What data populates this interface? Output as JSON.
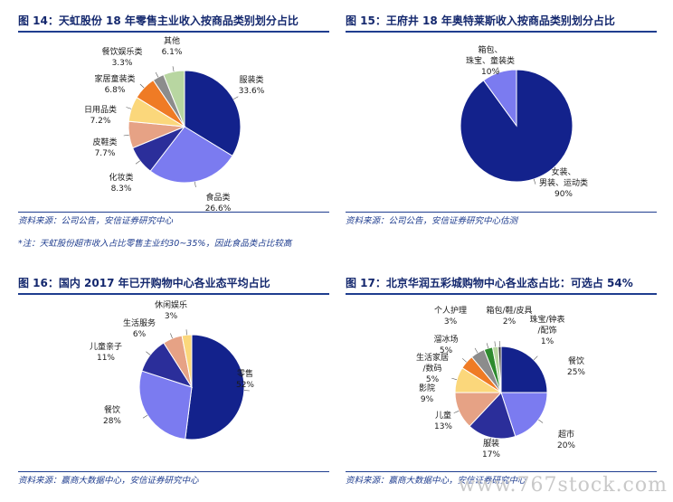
{
  "chart_data": [
    {
      "id": "p14",
      "type": "pie",
      "title": "图 14：天虹股份 18 年零售主业收入按商品类别划分占比",
      "slices": [
        {
          "label": "服装类",
          "pct": "33.6%",
          "value": 33.6,
          "color": "#13228c"
        },
        {
          "label": "食品类",
          "pct": "26.6%",
          "value": 26.6,
          "color": "#7b7bf0"
        },
        {
          "label": "化妆类",
          "pct": "8.3%",
          "value": 8.3,
          "color": "#2b2e9a"
        },
        {
          "label": "皮鞋类",
          "pct": "7.7%",
          "value": 7.7,
          "color": "#e6a285"
        },
        {
          "label": "日用品类",
          "pct": "7.2%",
          "value": 7.2,
          "color": "#fbd77b"
        },
        {
          "label": "家居童装类",
          "pct": "6.8%",
          "value": 6.8,
          "color": "#ef7b25"
        },
        {
          "label": "餐饮娱乐类",
          "pct": "3.3%",
          "value": 3.3,
          "color": "#8c8c8c"
        },
        {
          "label": "其他",
          "pct": "6.1%",
          "value": 6.1,
          "color": "#b8d6a1"
        }
      ],
      "source": "资料来源：公司公告，安信证券研究中心",
      "note": "*注：天虹股份超市收入占比零售主业约30~35%，因此食品类占比较高"
    },
    {
      "id": "p15",
      "type": "pie",
      "title": "图 15：王府井 18 年奥特莱斯收入按商品类别划分占比",
      "slices": [
        {
          "label": "女装、男装、运动类",
          "pct": "90%",
          "value": 90,
          "color": "#13228c"
        },
        {
          "label": "箱包、珠宝、童装类",
          "pct": "10%",
          "value": 10,
          "color": "#7b7bf0"
        }
      ],
      "source": "资料来源：公司公告，安信证券研究中心估测"
    },
    {
      "id": "p16",
      "type": "pie",
      "title": "图 16：国内 2017 年已开购物中心各业态平均占比",
      "slices": [
        {
          "label": "零售",
          "pct": "52%",
          "value": 52,
          "color": "#13228c"
        },
        {
          "label": "餐饮",
          "pct": "28%",
          "value": 28,
          "color": "#7b7bf0"
        },
        {
          "label": "儿童亲子",
          "pct": "11%",
          "value": 11,
          "color": "#2b2e9a"
        },
        {
          "label": "生活服务",
          "pct": "6%",
          "value": 6,
          "color": "#e6a285"
        },
        {
          "label": "休闲娱乐",
          "pct": "3%",
          "value": 3,
          "color": "#fbd77b"
        }
      ],
      "source": "资料来源：赢商大数据中心，安信证券研究中心"
    },
    {
      "id": "p17",
      "type": "pie",
      "title": "图 17：北京华润五彩城购物中心各业态占比：可选占 54%",
      "slices": [
        {
          "label": "餐饮",
          "pct": "25%",
          "value": 25,
          "color": "#13228c"
        },
        {
          "label": "超市",
          "pct": "20%",
          "value": 20,
          "color": "#7b7bf0"
        },
        {
          "label": "服装",
          "pct": "17%",
          "value": 17,
          "color": "#2b2e9a"
        },
        {
          "label": "儿童",
          "pct": "13%",
          "value": 13,
          "color": "#e6a285"
        },
        {
          "label": "影院",
          "pct": "9%",
          "value": 9,
          "color": "#fbd77b"
        },
        {
          "label": "生活家居/数码",
          "pct": "5%",
          "value": 5,
          "color": "#ef7b25"
        },
        {
          "label": "溜冰场",
          "pct": "5%",
          "value": 5,
          "color": "#8c8c8c"
        },
        {
          "label": "个人护理",
          "pct": "3%",
          "value": 3,
          "color": "#2e8b2e"
        },
        {
          "label": "箱包/鞋/皮具",
          "pct": "2%",
          "value": 2,
          "color": "#b8d6a1"
        },
        {
          "label": "珠宝/钟表/配饰",
          "pct": "1%",
          "value": 1,
          "color": "#3a3a3a"
        }
      ],
      "source": "资料来源：赢商大数据中心，安信证券研究中心"
    }
  ],
  "watermark": "www.767stock.com"
}
